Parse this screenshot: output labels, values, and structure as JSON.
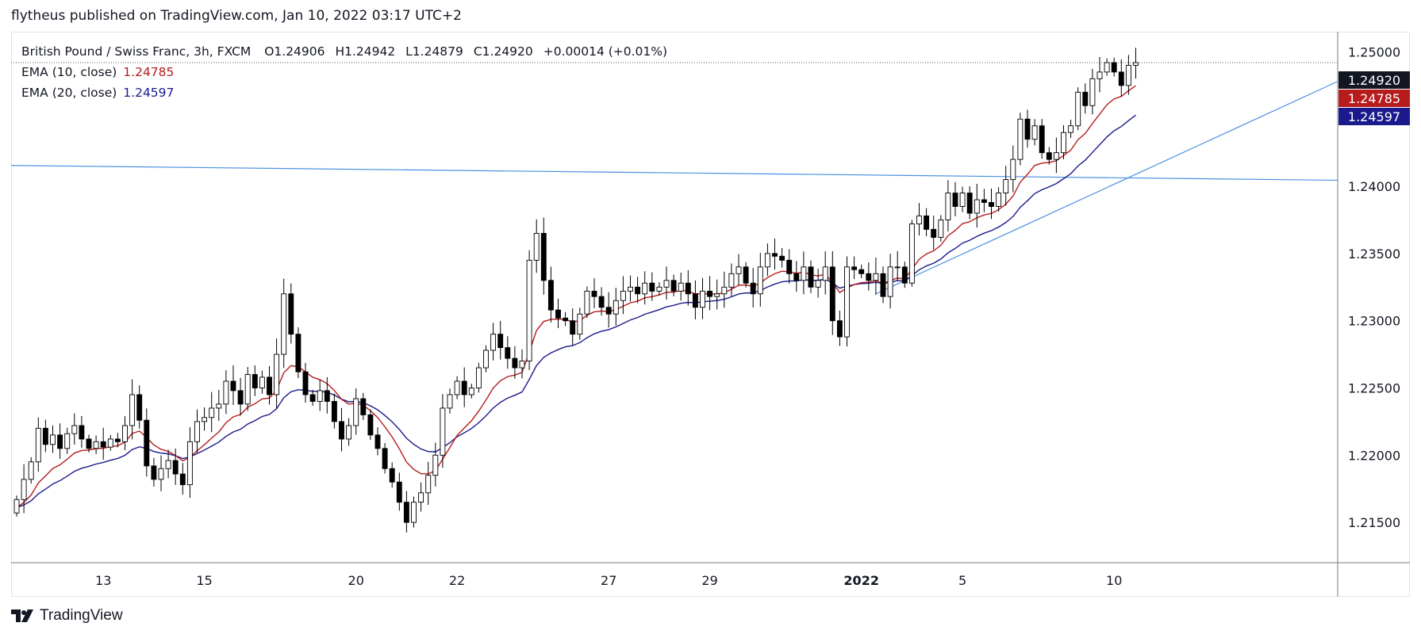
{
  "header": {
    "text": "flytheus published on TradingView.com, Jan 10, 2022 03:17 UTC+2"
  },
  "legend": {
    "symbol_line": "British Pound / Swiss Franc, 3h, FXCM",
    "ohlc": {
      "o_label": "O",
      "o": "1.24906",
      "h_label": "H",
      "h": "1.24942",
      "l_label": "L",
      "l": "1.24879",
      "c_label": "C",
      "c": "1.24920",
      "change": "+0.00014 (+0.01%)"
    },
    "ema10": {
      "label": "EMA (10, close)",
      "value": "1.24785",
      "color": "#b71c1c"
    },
    "ema20": {
      "label": "EMA (20, close)",
      "value": "1.24597",
      "color": "#1a1a8c"
    }
  },
  "footer": {
    "brand": "TradingView"
  },
  "chart_data": {
    "type": "candlestick",
    "symbol": "British Pound / Swiss Franc, 3h, FXCM",
    "ylim": [
      1.212,
      1.2515
    ],
    "y_ticks": [
      "1.21500",
      "1.22000",
      "1.22500",
      "1.23000",
      "1.23500",
      "1.24000",
      "1.24500",
      "1.25000"
    ],
    "x_ticks": [
      {
        "label": "13",
        "bar": 12,
        "bold": false
      },
      {
        "label": "15",
        "bar": 26,
        "bold": false
      },
      {
        "label": "20",
        "bar": 47,
        "bold": false
      },
      {
        "label": "22",
        "bar": 61,
        "bold": false
      },
      {
        "label": "27",
        "bar": 82,
        "bold": false
      },
      {
        "label": "29",
        "bar": 96,
        "bold": false
      },
      {
        "label": "2022",
        "bar": 117,
        "bold": true
      },
      {
        "label": "5",
        "bar": 131,
        "bold": false
      },
      {
        "label": "10",
        "bar": 152,
        "bold": false
      }
    ],
    "price_labels": [
      {
        "text": "1.24920",
        "value": 1.2492,
        "color": "#131722"
      },
      {
        "text": "1.24785",
        "value": 1.24785,
        "color": "#b71c1c"
      },
      {
        "text": "1.24597",
        "value": 1.24597,
        "color": "#1a1a8c"
      }
    ],
    "current_price": 1.2492,
    "colors": {
      "up_fill": "#ffffff",
      "down_fill": "#000000",
      "wick": "#000000",
      "trend": "#4a90e2",
      "grid_axis": "#787b86"
    },
    "closes": [
      1.2167,
      1.2182,
      1.2195,
      1.222,
      1.2208,
      1.2215,
      1.2205,
      1.2216,
      1.2222,
      1.2212,
      1.2205,
      1.221,
      1.2206,
      1.2212,
      1.221,
      1.2222,
      1.2245,
      1.2226,
      1.2192,
      1.2182,
      1.219,
      1.2196,
      1.2186,
      1.2178,
      1.221,
      1.2225,
      1.2228,
      1.2235,
      1.2238,
      1.2255,
      1.2248,
      1.2238,
      1.226,
      1.225,
      1.2258,
      1.2245,
      1.2275,
      1.232,
      1.229,
      1.2262,
      1.2245,
      1.224,
      1.2248,
      1.224,
      1.2225,
      1.2212,
      1.2222,
      1.2242,
      1.223,
      1.2215,
      1.2205,
      1.219,
      1.218,
      1.2165,
      1.215,
      1.2165,
      1.2172,
      1.2185,
      1.22,
      1.2235,
      1.2245,
      1.2255,
      1.2245,
      1.225,
      1.2265,
      1.2278,
      1.229,
      1.228,
      1.2272,
      1.2265,
      1.227,
      1.2345,
      1.2365,
      1.233,
      1.2308,
      1.2302,
      1.23,
      1.229,
      1.2305,
      1.2322,
      1.2318,
      1.231,
      1.2305,
      1.2315,
      1.2322,
      1.2325,
      1.232,
      1.2328,
      1.2322,
      1.2325,
      1.233,
      1.2322,
      1.2328,
      1.232,
      1.231,
      1.2322,
      1.2318,
      1.232,
      1.2325,
      1.2335,
      1.234,
      1.2328,
      1.232,
      1.234,
      1.235,
      1.2348,
      1.2345,
      1.2335,
      1.233,
      1.234,
      1.2325,
      1.233,
      1.234,
      1.23,
      1.2288,
      1.234,
      1.2338,
      1.2335,
      1.233,
      1.2335,
      1.2318,
      1.234,
      1.234,
      1.2328,
      1.2372,
      1.2378,
      1.2368,
      1.2362,
      1.2375,
      1.2395,
      1.2385,
      1.2395,
      1.238,
      1.239,
      1.2388,
      1.2385,
      1.2395,
      1.2405,
      1.242,
      1.245,
      1.2435,
      1.2445,
      1.2425,
      1.242,
      1.2425,
      1.244,
      1.2445,
      1.247,
      1.246,
      1.248,
      1.2485,
      1.2492,
      1.2485,
      1.2475,
      1.249,
      1.2492
    ]
  }
}
